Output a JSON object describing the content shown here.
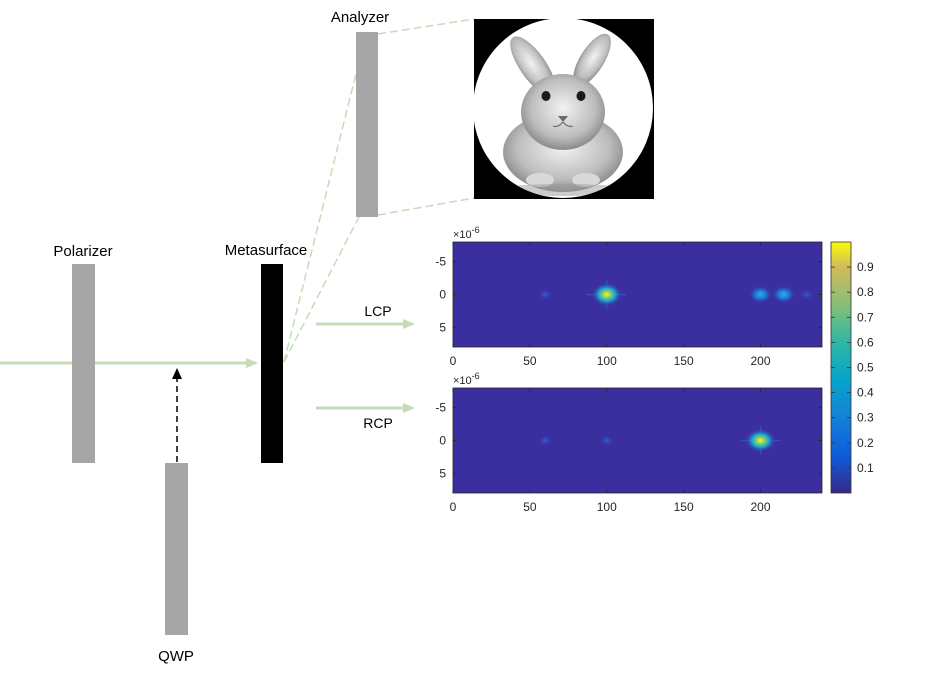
{
  "labels": {
    "analyzer": "Analyzer",
    "polarizer": "Polarizer",
    "metasurface": "Metasurface",
    "qwp": "QWP",
    "lcp": "LCP",
    "rcp": "RCP"
  },
  "colors": {
    "beam": "#c5ddb6",
    "component_gray": "#a6a6a6",
    "metasurface": "#000000",
    "plot_background": "#3b2fa0"
  },
  "image_subject": "rabbit-photo-grayscale-circular-crop",
  "chart_data": [
    {
      "type": "heatmap",
      "name": "LCP",
      "xlim": [
        0,
        240
      ],
      "x_ticks": [
        "0",
        "50",
        "100",
        "150",
        "200"
      ],
      "ylim": [
        -8,
        8
      ],
      "y_ticks": [
        "-5",
        "0",
        "5"
      ],
      "y_exponent": "×10",
      "y_exponent_power": "-6",
      "peaks": [
        {
          "x": 100,
          "y": 0,
          "intensity": 0.95
        },
        {
          "x": 60,
          "y": 0,
          "intensity": 0.12
        },
        {
          "x": 200,
          "y": 0,
          "intensity": 0.25
        },
        {
          "x": 215,
          "y": 0,
          "intensity": 0.2
        },
        {
          "x": 230,
          "y": 0,
          "intensity": 0.15
        }
      ]
    },
    {
      "type": "heatmap",
      "name": "RCP",
      "xlim": [
        0,
        240
      ],
      "x_ticks": [
        "0",
        "50",
        "100",
        "150",
        "200"
      ],
      "ylim": [
        -8,
        8
      ],
      "y_ticks": [
        "-5",
        "0",
        "5"
      ],
      "y_exponent": "×10",
      "y_exponent_power": "-6",
      "peaks": [
        {
          "x": 200,
          "y": 0,
          "intensity": 0.9
        },
        {
          "x": 60,
          "y": 0,
          "intensity": 0.1
        },
        {
          "x": 100,
          "y": 0,
          "intensity": 0.1
        }
      ]
    }
  ],
  "colorbar": {
    "ticks": [
      "0.9",
      "0.8",
      "0.7",
      "0.6",
      "0.5",
      "0.4",
      "0.3",
      "0.2",
      "0.1"
    ],
    "range": [
      0,
      1
    ],
    "colormap": "parula"
  }
}
